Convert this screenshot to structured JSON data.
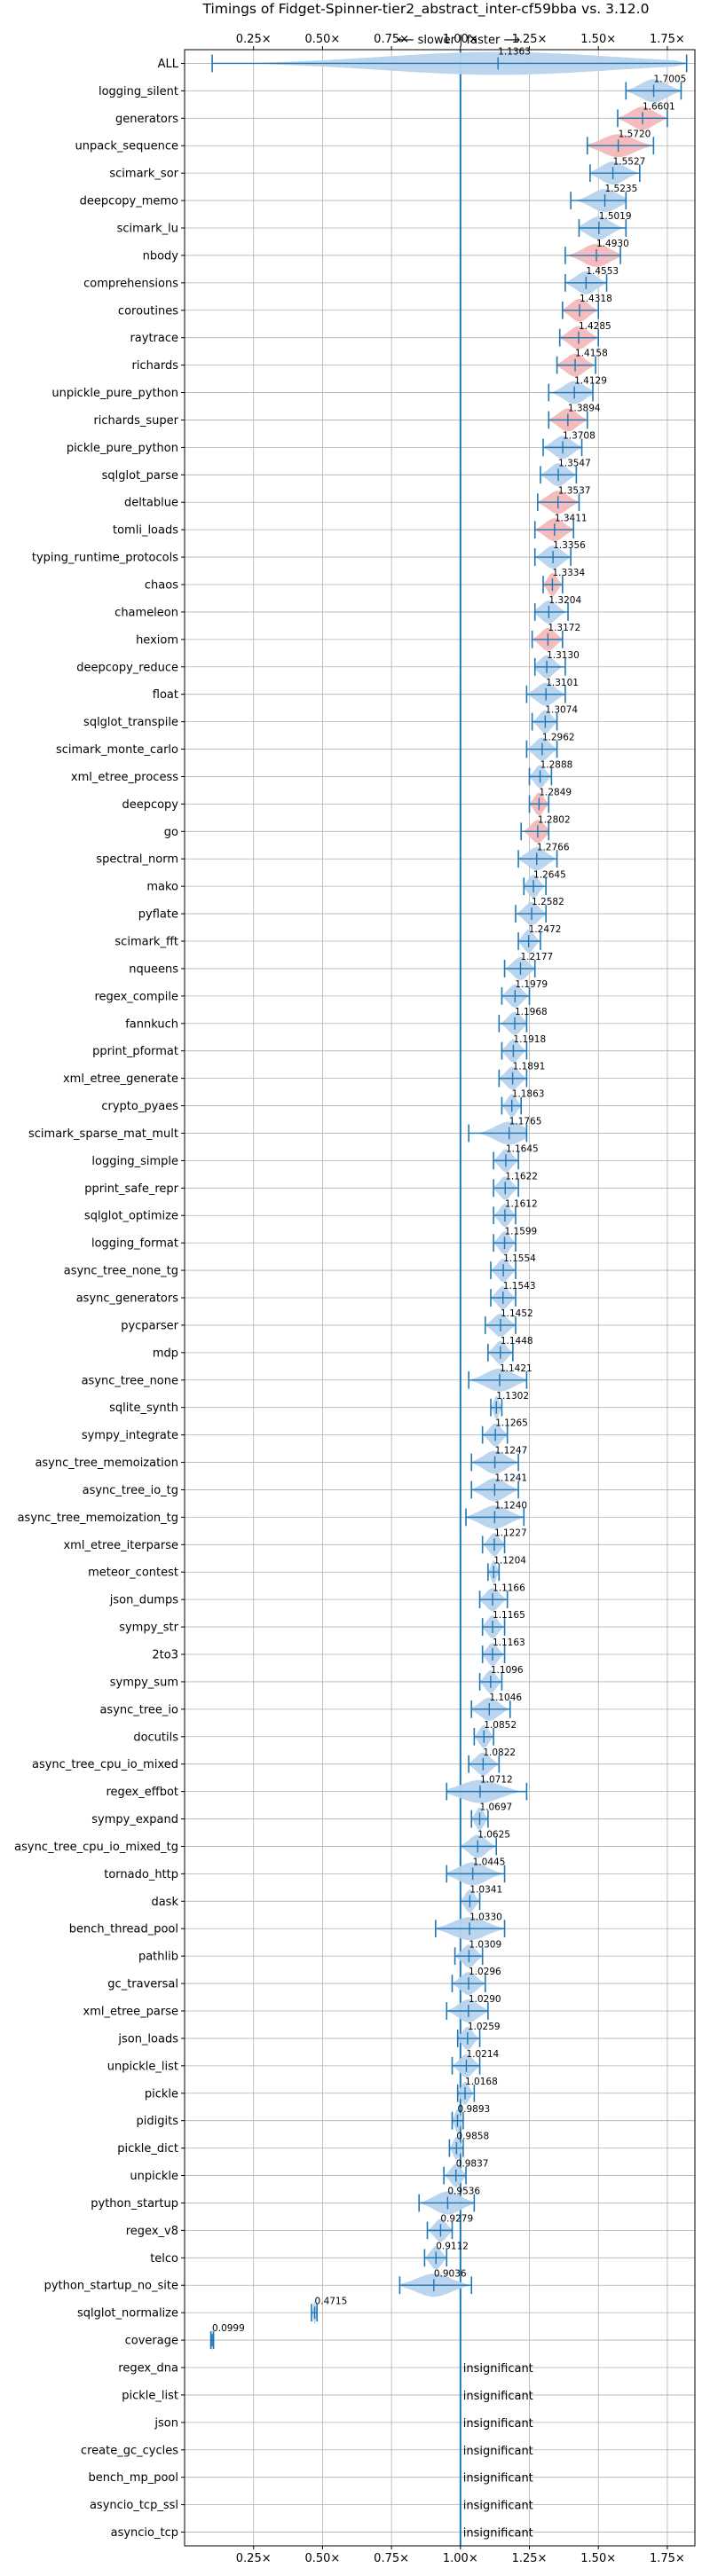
{
  "chart_data": {
    "type": "violin",
    "title": "Timings of Fidget-Spinner-tier2_abstract_inter-cf59bba vs. 3.12.0",
    "direction_label": "⟵ slower | faster ⟶",
    "xlim": [
      0.0,
      1.85
    ],
    "xticks": [
      0.25,
      0.5,
      0.75,
      1.0,
      1.25,
      1.5,
      1.75
    ],
    "xtick_labels": [
      "0.25×",
      "0.50×",
      "0.75×",
      "1.00×",
      "1.25×",
      "1.50×",
      "1.75×"
    ],
    "reference_line": 1.0,
    "grid": true,
    "insignificant_label": "insignificant",
    "colors": {
      "faster": "#b8d3ed",
      "slower_significant": "#f3b8b8",
      "line": "#1f77b4",
      "grid": "#b0b0b0"
    },
    "benchmarks": [
      {
        "name": "ALL",
        "value": 1.1363,
        "label": "1.1363",
        "min": 0.1,
        "max": 1.82,
        "highlight": false
      },
      {
        "name": "logging_silent",
        "value": 1.7005,
        "label": "1.7005",
        "min": 1.6,
        "max": 1.8,
        "highlight": false
      },
      {
        "name": "generators",
        "value": 1.6601,
        "label": "1.6601",
        "min": 1.57,
        "max": 1.75,
        "highlight": true
      },
      {
        "name": "unpack_sequence",
        "value": 1.572,
        "label": "1.5720",
        "min": 1.46,
        "max": 1.7,
        "highlight": true
      },
      {
        "name": "scimark_sor",
        "value": 1.5527,
        "label": "1.5527",
        "min": 1.47,
        "max": 1.65,
        "highlight": false
      },
      {
        "name": "deepcopy_memo",
        "value": 1.5235,
        "label": "1.5235",
        "min": 1.4,
        "max": 1.6,
        "highlight": false
      },
      {
        "name": "scimark_lu",
        "value": 1.5019,
        "label": "1.5019",
        "min": 1.43,
        "max": 1.6,
        "highlight": false
      },
      {
        "name": "nbody",
        "value": 1.493,
        "label": "1.4930",
        "min": 1.38,
        "max": 1.58,
        "highlight": true
      },
      {
        "name": "comprehensions",
        "value": 1.4553,
        "label": "1.4553",
        "min": 1.38,
        "max": 1.53,
        "highlight": false
      },
      {
        "name": "coroutines",
        "value": 1.4318,
        "label": "1.4318",
        "min": 1.37,
        "max": 1.5,
        "highlight": true
      },
      {
        "name": "raytrace",
        "value": 1.4285,
        "label": "1.4285",
        "min": 1.36,
        "max": 1.5,
        "highlight": true
      },
      {
        "name": "richards",
        "value": 1.4158,
        "label": "1.4158",
        "min": 1.35,
        "max": 1.49,
        "highlight": true
      },
      {
        "name": "unpickle_pure_python",
        "value": 1.4129,
        "label": "1.4129",
        "min": 1.32,
        "max": 1.48,
        "highlight": false
      },
      {
        "name": "richards_super",
        "value": 1.3894,
        "label": "1.3894",
        "min": 1.32,
        "max": 1.46,
        "highlight": true
      },
      {
        "name": "pickle_pure_python",
        "value": 1.3708,
        "label": "1.3708",
        "min": 1.3,
        "max": 1.44,
        "highlight": false
      },
      {
        "name": "sqlglot_parse",
        "value": 1.3547,
        "label": "1.3547",
        "min": 1.29,
        "max": 1.42,
        "highlight": false
      },
      {
        "name": "deltablue",
        "value": 1.3537,
        "label": "1.3537",
        "min": 1.28,
        "max": 1.43,
        "highlight": true
      },
      {
        "name": "tomli_loads",
        "value": 1.3411,
        "label": "1.3411",
        "min": 1.27,
        "max": 1.41,
        "highlight": true
      },
      {
        "name": "typing_runtime_protocols",
        "value": 1.3356,
        "label": "1.3356",
        "min": 1.27,
        "max": 1.4,
        "highlight": false
      },
      {
        "name": "chaos",
        "value": 1.3334,
        "label": "1.3334",
        "min": 1.3,
        "max": 1.37,
        "highlight": true
      },
      {
        "name": "chameleon",
        "value": 1.3204,
        "label": "1.3204",
        "min": 1.27,
        "max": 1.39,
        "highlight": false
      },
      {
        "name": "hexiom",
        "value": 1.3172,
        "label": "1.3172",
        "min": 1.26,
        "max": 1.37,
        "highlight": true
      },
      {
        "name": "deepcopy_reduce",
        "value": 1.313,
        "label": "1.3130",
        "min": 1.27,
        "max": 1.38,
        "highlight": false
      },
      {
        "name": "float",
        "value": 1.3101,
        "label": "1.3101",
        "min": 1.24,
        "max": 1.38,
        "highlight": false
      },
      {
        "name": "sqlglot_transpile",
        "value": 1.3074,
        "label": "1.3074",
        "min": 1.26,
        "max": 1.35,
        "highlight": false
      },
      {
        "name": "scimark_monte_carlo",
        "value": 1.2962,
        "label": "1.2962",
        "min": 1.24,
        "max": 1.35,
        "highlight": false
      },
      {
        "name": "xml_etree_process",
        "value": 1.2888,
        "label": "1.2888",
        "min": 1.25,
        "max": 1.33,
        "highlight": false
      },
      {
        "name": "deepcopy",
        "value": 1.2849,
        "label": "1.2849",
        "min": 1.25,
        "max": 1.32,
        "highlight": true
      },
      {
        "name": "go",
        "value": 1.2802,
        "label": "1.2802",
        "min": 1.22,
        "max": 1.32,
        "highlight": true
      },
      {
        "name": "spectral_norm",
        "value": 1.2766,
        "label": "1.2766",
        "min": 1.21,
        "max": 1.35,
        "highlight": false
      },
      {
        "name": "mako",
        "value": 1.2645,
        "label": "1.2645",
        "min": 1.23,
        "max": 1.31,
        "highlight": false
      },
      {
        "name": "pyflate",
        "value": 1.2582,
        "label": "1.2582",
        "min": 1.2,
        "max": 1.31,
        "highlight": false
      },
      {
        "name": "scimark_fft",
        "value": 1.2472,
        "label": "1.2472",
        "min": 1.21,
        "max": 1.29,
        "highlight": false
      },
      {
        "name": "nqueens",
        "value": 1.2177,
        "label": "1.2177",
        "min": 1.16,
        "max": 1.27,
        "highlight": false
      },
      {
        "name": "regex_compile",
        "value": 1.1979,
        "label": "1.1979",
        "min": 1.15,
        "max": 1.25,
        "highlight": false
      },
      {
        "name": "fannkuch",
        "value": 1.1968,
        "label": "1.1968",
        "min": 1.14,
        "max": 1.24,
        "highlight": false
      },
      {
        "name": "pprint_pformat",
        "value": 1.1918,
        "label": "1.1918",
        "min": 1.15,
        "max": 1.24,
        "highlight": false
      },
      {
        "name": "xml_etree_generate",
        "value": 1.1891,
        "label": "1.1891",
        "min": 1.14,
        "max": 1.24,
        "highlight": false
      },
      {
        "name": "crypto_pyaes",
        "value": 1.1863,
        "label": "1.1863",
        "min": 1.15,
        "max": 1.22,
        "highlight": false
      },
      {
        "name": "scimark_sparse_mat_mult",
        "value": 1.1765,
        "label": "1.1765",
        "min": 1.03,
        "max": 1.24,
        "highlight": false
      },
      {
        "name": "logging_simple",
        "value": 1.1645,
        "label": "1.1645",
        "min": 1.12,
        "max": 1.21,
        "highlight": false
      },
      {
        "name": "pprint_safe_repr",
        "value": 1.1622,
        "label": "1.1622",
        "min": 1.12,
        "max": 1.21,
        "highlight": false
      },
      {
        "name": "sqlglot_optimize",
        "value": 1.1612,
        "label": "1.1612",
        "min": 1.12,
        "max": 1.2,
        "highlight": false
      },
      {
        "name": "logging_format",
        "value": 1.1599,
        "label": "1.1599",
        "min": 1.12,
        "max": 1.2,
        "highlight": false
      },
      {
        "name": "async_tree_none_tg",
        "value": 1.1554,
        "label": "1.1554",
        "min": 1.11,
        "max": 1.2,
        "highlight": false
      },
      {
        "name": "async_generators",
        "value": 1.1543,
        "label": "1.1543",
        "min": 1.11,
        "max": 1.2,
        "highlight": false
      },
      {
        "name": "pycparser",
        "value": 1.1452,
        "label": "1.1452",
        "min": 1.09,
        "max": 1.2,
        "highlight": false
      },
      {
        "name": "mdp",
        "value": 1.1448,
        "label": "1.1448",
        "min": 1.1,
        "max": 1.19,
        "highlight": false
      },
      {
        "name": "async_tree_none",
        "value": 1.1421,
        "label": "1.1421",
        "min": 1.03,
        "max": 1.24,
        "highlight": false
      },
      {
        "name": "sqlite_synth",
        "value": 1.1302,
        "label": "1.1302",
        "min": 1.11,
        "max": 1.15,
        "highlight": false
      },
      {
        "name": "sympy_integrate",
        "value": 1.1265,
        "label": "1.1265",
        "min": 1.08,
        "max": 1.17,
        "highlight": false
      },
      {
        "name": "async_tree_memoization",
        "value": 1.1247,
        "label": "1.1247",
        "min": 1.04,
        "max": 1.21,
        "highlight": false
      },
      {
        "name": "async_tree_io_tg",
        "value": 1.1241,
        "label": "1.1241",
        "min": 1.04,
        "max": 1.21,
        "highlight": false
      },
      {
        "name": "async_tree_memoization_tg",
        "value": 1.124,
        "label": "1.1240",
        "min": 1.02,
        "max": 1.23,
        "highlight": false
      },
      {
        "name": "xml_etree_iterparse",
        "value": 1.1227,
        "label": "1.1227",
        "min": 1.08,
        "max": 1.16,
        "highlight": false
      },
      {
        "name": "meteor_contest",
        "value": 1.1204,
        "label": "1.1204",
        "min": 1.1,
        "max": 1.14,
        "highlight": false
      },
      {
        "name": "json_dumps",
        "value": 1.1166,
        "label": "1.1166",
        "min": 1.07,
        "max": 1.17,
        "highlight": false
      },
      {
        "name": "sympy_str",
        "value": 1.1165,
        "label": "1.1165",
        "min": 1.08,
        "max": 1.16,
        "highlight": false
      },
      {
        "name": "2to3",
        "value": 1.1163,
        "label": "1.1163",
        "min": 1.08,
        "max": 1.16,
        "highlight": false
      },
      {
        "name": "sympy_sum",
        "value": 1.1096,
        "label": "1.1096",
        "min": 1.07,
        "max": 1.15,
        "highlight": false
      },
      {
        "name": "async_tree_io",
        "value": 1.1046,
        "label": "1.1046",
        "min": 1.04,
        "max": 1.18,
        "highlight": false
      },
      {
        "name": "docutils",
        "value": 1.0852,
        "label": "1.0852",
        "min": 1.05,
        "max": 1.12,
        "highlight": false
      },
      {
        "name": "async_tree_cpu_io_mixed",
        "value": 1.0822,
        "label": "1.0822",
        "min": 1.03,
        "max": 1.14,
        "highlight": false
      },
      {
        "name": "regex_effbot",
        "value": 1.0712,
        "label": "1.0712",
        "min": 0.95,
        "max": 1.24,
        "highlight": false
      },
      {
        "name": "sympy_expand",
        "value": 1.0697,
        "label": "1.0697",
        "min": 1.04,
        "max": 1.1,
        "highlight": false
      },
      {
        "name": "async_tree_cpu_io_mixed_tg",
        "value": 1.0625,
        "label": "1.0625",
        "min": 1.0,
        "max": 1.13,
        "highlight": false
      },
      {
        "name": "tornado_http",
        "value": 1.0445,
        "label": "1.0445",
        "min": 0.95,
        "max": 1.16,
        "highlight": false
      },
      {
        "name": "dask",
        "value": 1.0341,
        "label": "1.0341",
        "min": 1.0,
        "max": 1.07,
        "highlight": false
      },
      {
        "name": "bench_thread_pool",
        "value": 1.033,
        "label": "1.0330",
        "min": 0.91,
        "max": 1.16,
        "highlight": false
      },
      {
        "name": "pathlib",
        "value": 1.0309,
        "label": "1.0309",
        "min": 0.98,
        "max": 1.08,
        "highlight": false
      },
      {
        "name": "gc_traversal",
        "value": 1.0296,
        "label": "1.0296",
        "min": 0.97,
        "max": 1.09,
        "highlight": false
      },
      {
        "name": "xml_etree_parse",
        "value": 1.029,
        "label": "1.0290",
        "min": 0.95,
        "max": 1.1,
        "highlight": false
      },
      {
        "name": "json_loads",
        "value": 1.0259,
        "label": "1.0259",
        "min": 0.99,
        "max": 1.07,
        "highlight": false
      },
      {
        "name": "unpickle_list",
        "value": 1.0214,
        "label": "1.0214",
        "min": 0.97,
        "max": 1.07,
        "highlight": false
      },
      {
        "name": "pickle",
        "value": 1.0168,
        "label": "1.0168",
        "min": 0.99,
        "max": 1.05,
        "highlight": false
      },
      {
        "name": "pidigits",
        "value": 0.9893,
        "label": "0.9893",
        "min": 0.97,
        "max": 1.01,
        "highlight": false
      },
      {
        "name": "pickle_dict",
        "value": 0.9858,
        "label": "0.9858",
        "min": 0.96,
        "max": 1.01,
        "highlight": false
      },
      {
        "name": "unpickle",
        "value": 0.9837,
        "label": "0.9837",
        "min": 0.94,
        "max": 1.02,
        "highlight": false
      },
      {
        "name": "python_startup",
        "value": 0.9536,
        "label": "0.9536",
        "min": 0.85,
        "max": 1.05,
        "highlight": false
      },
      {
        "name": "regex_v8",
        "value": 0.9279,
        "label": "0.9279",
        "min": 0.88,
        "max": 0.97,
        "highlight": false
      },
      {
        "name": "telco",
        "value": 0.9112,
        "label": "0.9112",
        "min": 0.87,
        "max": 0.95,
        "highlight": false
      },
      {
        "name": "python_startup_no_site",
        "value": 0.9036,
        "label": "0.9036",
        "min": 0.78,
        "max": 1.04,
        "highlight": false
      },
      {
        "name": "sqlglot_normalize",
        "value": 0.4715,
        "label": "0.4715",
        "min": 0.46,
        "max": 0.48,
        "highlight": false
      },
      {
        "name": "coverage",
        "value": 0.0999,
        "label": "0.0999",
        "min": 0.095,
        "max": 0.105,
        "highlight": false
      },
      {
        "name": "regex_dna",
        "value": null,
        "label": "",
        "insignificant": true
      },
      {
        "name": "pickle_list",
        "value": null,
        "label": "",
        "insignificant": true
      },
      {
        "name": "json",
        "value": null,
        "label": "",
        "insignificant": true
      },
      {
        "name": "create_gc_cycles",
        "value": null,
        "label": "",
        "insignificant": true
      },
      {
        "name": "bench_mp_pool",
        "value": null,
        "label": "",
        "insignificant": true
      },
      {
        "name": "asyncio_tcp_ssl",
        "value": null,
        "label": "",
        "insignificant": true
      },
      {
        "name": "asyncio_tcp",
        "value": null,
        "label": "",
        "insignificant": true
      }
    ]
  }
}
